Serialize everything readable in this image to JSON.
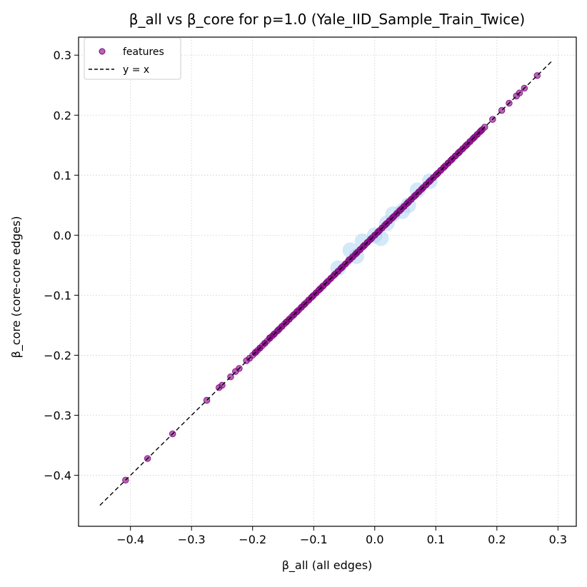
{
  "chart_data": {
    "type": "scatter",
    "title": "β_all vs β_core for p=1.0 (Yale_IID_Sample_Train_Twice)",
    "xlabel": "β_all (all edges)",
    "ylabel": "β_core (core-core edges)",
    "xlim": [
      -0.485,
      0.33
    ],
    "ylim": [
      -0.485,
      0.33
    ],
    "xticks": [
      -0.4,
      -0.3,
      -0.2,
      -0.1,
      0.0,
      0.1,
      0.2,
      0.3
    ],
    "yticks": [
      -0.4,
      -0.3,
      -0.2,
      -0.1,
      0.0,
      0.1,
      0.2,
      0.3
    ],
    "xtick_labels": [
      "−0.4",
      "−0.3",
      "−0.2",
      "−0.1",
      "0.0",
      "0.1",
      "0.2",
      "0.3"
    ],
    "ytick_labels": [
      "−0.4",
      "−0.3",
      "−0.2",
      "−0.1",
      "0.0",
      "0.1",
      "0.2",
      "0.3"
    ],
    "grid": true,
    "legend_position": "top-left",
    "legend": [
      {
        "label": "features",
        "kind": "marker",
        "color": "#800080"
      },
      {
        "label": "y = x",
        "kind": "dashed-line",
        "color": "#000000"
      }
    ],
    "reference_line": {
      "name": "y = x",
      "from": [
        -0.45,
        -0.45
      ],
      "to": [
        0.29,
        0.29
      ]
    },
    "density_color": "#a9d3ef",
    "marker_color": "#800080",
    "series": [
      {
        "name": "features",
        "points": [
          [
            -0.408,
            -0.408
          ],
          [
            -0.372,
            -0.372
          ],
          [
            -0.331,
            -0.331
          ],
          [
            -0.275,
            -0.275
          ],
          [
            -0.255,
            -0.254
          ],
          [
            -0.25,
            -0.25
          ],
          [
            -0.236,
            -0.236
          ],
          [
            -0.228,
            -0.227
          ],
          [
            -0.222,
            -0.222
          ],
          [
            -0.21,
            -0.209
          ],
          [
            -0.205,
            -0.205
          ],
          [
            -0.195,
            -0.195
          ],
          [
            -0.188,
            -0.188
          ],
          [
            -0.18,
            -0.18
          ],
          [
            -0.172,
            -0.171
          ],
          [
            -0.165,
            -0.165
          ],
          [
            -0.158,
            -0.158
          ],
          [
            -0.152,
            -0.152
          ],
          [
            -0.145,
            -0.145
          ],
          [
            -0.14,
            -0.14
          ],
          [
            -0.133,
            -0.133
          ],
          [
            -0.127,
            -0.127
          ],
          [
            -0.12,
            -0.12
          ],
          [
            -0.115,
            -0.115
          ],
          [
            -0.108,
            -0.108
          ],
          [
            -0.102,
            -0.102
          ],
          [
            -0.096,
            -0.096
          ],
          [
            -0.09,
            -0.09
          ],
          [
            -0.085,
            -0.085
          ],
          [
            -0.078,
            -0.078
          ],
          [
            -0.072,
            -0.072
          ],
          [
            -0.066,
            -0.066
          ],
          [
            -0.06,
            -0.06
          ],
          [
            -0.054,
            -0.054
          ],
          [
            -0.048,
            -0.048
          ],
          [
            -0.042,
            -0.041
          ],
          [
            -0.036,
            -0.036
          ],
          [
            -0.03,
            -0.03
          ],
          [
            -0.024,
            -0.024
          ],
          [
            -0.018,
            -0.018
          ],
          [
            -0.012,
            -0.012
          ],
          [
            -0.006,
            -0.006
          ],
          [
            0.0,
            0.0
          ],
          [
            0.006,
            0.006
          ],
          [
            0.012,
            0.012
          ],
          [
            0.018,
            0.018
          ],
          [
            0.024,
            0.024
          ],
          [
            0.03,
            0.03
          ],
          [
            0.036,
            0.036
          ],
          [
            0.042,
            0.042
          ],
          [
            0.048,
            0.048
          ],
          [
            0.054,
            0.054
          ],
          [
            0.06,
            0.06
          ],
          [
            0.066,
            0.066
          ],
          [
            0.072,
            0.072
          ],
          [
            0.078,
            0.078
          ],
          [
            0.084,
            0.084
          ],
          [
            0.09,
            0.09
          ],
          [
            0.096,
            0.096
          ],
          [
            0.102,
            0.102
          ],
          [
            0.108,
            0.108
          ],
          [
            0.114,
            0.114
          ],
          [
            0.12,
            0.12
          ],
          [
            0.126,
            0.126
          ],
          [
            0.132,
            0.132
          ],
          [
            0.138,
            0.138
          ],
          [
            0.144,
            0.144
          ],
          [
            0.15,
            0.15
          ],
          [
            0.156,
            0.156
          ],
          [
            0.162,
            0.162
          ],
          [
            0.168,
            0.168
          ],
          [
            0.174,
            0.174
          ],
          [
            0.18,
            0.18
          ],
          [
            0.193,
            0.193
          ],
          [
            0.208,
            0.208
          ],
          [
            0.22,
            0.22
          ],
          [
            0.232,
            0.232
          ],
          [
            0.237,
            0.237
          ],
          [
            0.245,
            0.245
          ],
          [
            0.266,
            0.266
          ]
        ]
      }
    ],
    "density_points": [
      [
        -0.06,
        -0.055
      ],
      [
        -0.04,
        -0.025
      ],
      [
        -0.03,
        -0.035
      ],
      [
        -0.02,
        -0.01
      ],
      [
        0.0,
        0.0
      ],
      [
        0.01,
        -0.005
      ],
      [
        0.02,
        0.02
      ],
      [
        0.03,
        0.035
      ],
      [
        0.045,
        0.04
      ],
      [
        0.055,
        0.05
      ],
      [
        0.07,
        0.075
      ],
      [
        0.09,
        0.09
      ]
    ]
  }
}
